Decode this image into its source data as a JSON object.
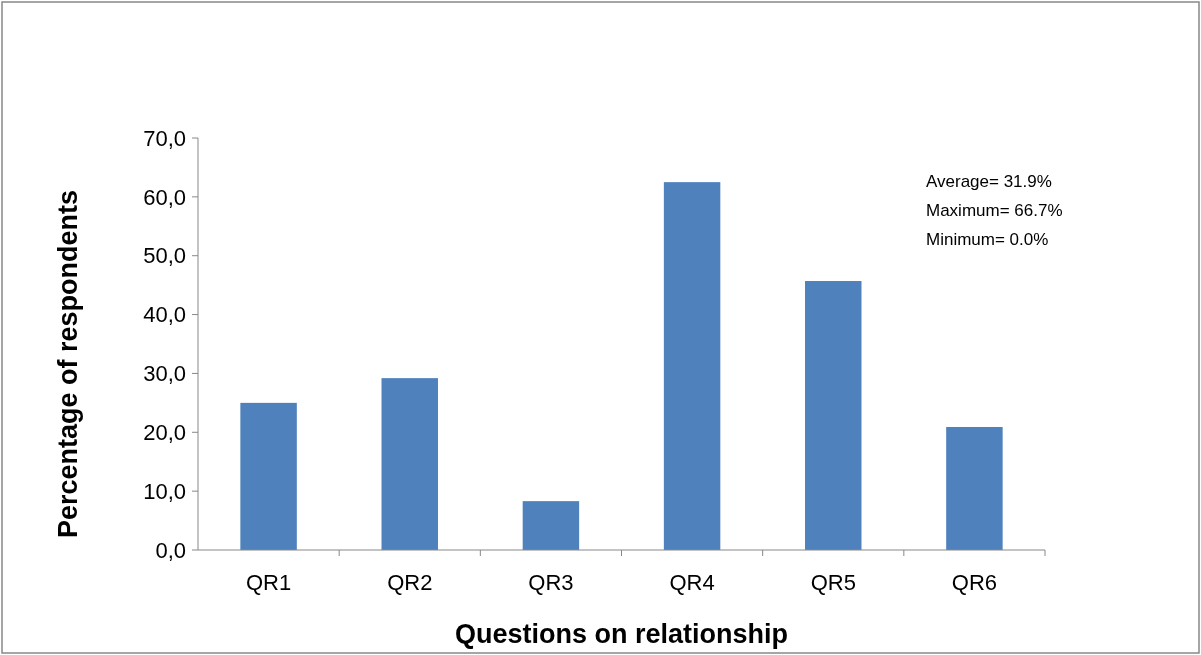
{
  "chart_data": {
    "type": "bar",
    "xlabel": "Questions on relationship",
    "ylabel": "Percentage of respondents",
    "categories": [
      "QR1",
      "QR2",
      "QR3",
      "QR4",
      "QR5",
      "QR6"
    ],
    "values": [
      25.0,
      29.2,
      8.3,
      62.5,
      45.7,
      20.9
    ],
    "color": "#4f81bd",
    "ylim": [
      0,
      70
    ],
    "yticks": [
      {
        "value": 0,
        "label": "0,0"
      },
      {
        "value": 10,
        "label": "10,0"
      },
      {
        "value": 20,
        "label": "20,0"
      },
      {
        "value": 30,
        "label": "30,0"
      },
      {
        "value": 40,
        "label": "40,0"
      },
      {
        "value": 50,
        "label": "50,0"
      },
      {
        "value": 60,
        "label": "60,0"
      },
      {
        "value": 70,
        "label": "70,0"
      }
    ],
    "annotations": [
      "Average= 31.9%",
      "Maximum= 66.7%",
      "Minimum= 0.0%"
    ],
    "grid": false
  }
}
